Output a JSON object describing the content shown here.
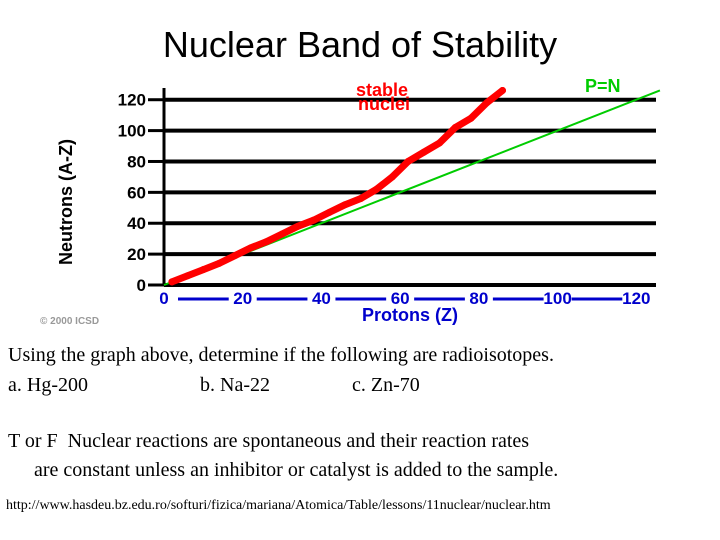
{
  "slide": {
    "title": "Nuclear Band of Stability",
    "question1": "Using the graph above, determine if the following are radioisotopes.",
    "options": [
      "a. Hg-200",
      "b. Na-22",
      "c. Zn-70"
    ],
    "question2_line1": "T or F  Nuclear reactions are spontaneous and their reaction rates",
    "question2_line2": "are constant unless an inhibitor or catalyst is added to the sample.",
    "source": "http://www.hasdeu.bz.edu.ro/softuri/fizica/mariana/Atomica/Table/lessons/11nuclear/nuclear.htm"
  },
  "chart_data": {
    "type": "scatter",
    "xlabel": "Protons  (Z)",
    "ylabel": "Neutrons  (A-Z)",
    "xlim": [
      0,
      125
    ],
    "ylim": [
      0,
      125
    ],
    "xticks": [
      "0",
      "20",
      "40",
      "60",
      "80",
      "100",
      "120"
    ],
    "yticks": [
      "0",
      "20",
      "40",
      "60",
      "80",
      "100",
      "120"
    ],
    "copyright": "© 2000 ICSD",
    "series": [
      {
        "name": "stable nuclei",
        "label_line1": "stable",
        "label_line2": "nuclei",
        "color": "#ff0000",
        "points": [
          [
            2,
            2
          ],
          [
            6,
            6
          ],
          [
            10,
            10
          ],
          [
            14,
            14
          ],
          [
            18,
            19
          ],
          [
            22,
            24
          ],
          [
            26,
            28
          ],
          [
            30,
            33
          ],
          [
            34,
            38
          ],
          [
            38,
            42
          ],
          [
            42,
            47
          ],
          [
            46,
            52
          ],
          [
            50,
            56
          ],
          [
            54,
            62
          ],
          [
            58,
            70
          ],
          [
            62,
            80
          ],
          [
            66,
            86
          ],
          [
            70,
            92
          ],
          [
            74,
            102
          ],
          [
            78,
            108
          ],
          [
            82,
            118
          ],
          [
            86,
            126
          ]
        ]
      },
      {
        "name": "P=N",
        "color": "#00cc00",
        "line": [
          [
            0,
            0
          ],
          [
            126,
            126
          ]
        ]
      }
    ]
  }
}
